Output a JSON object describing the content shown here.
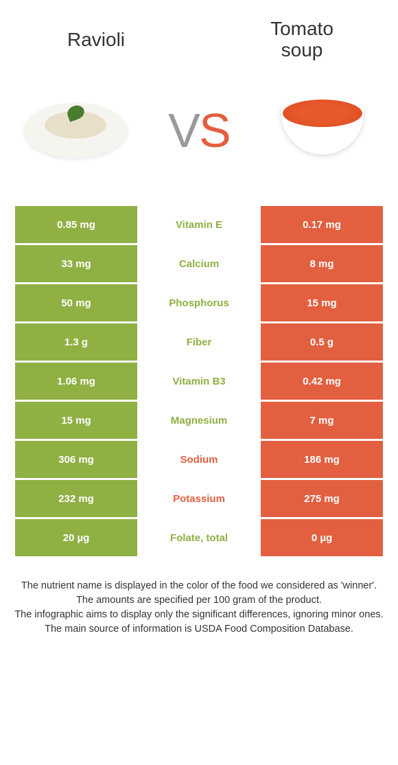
{
  "header": {
    "left_title": "Ravioli",
    "right_title_line1": "Tomato",
    "right_title_line2": "soup",
    "vs_v": "V",
    "vs_s": "S"
  },
  "colors": {
    "green": "#8fb043",
    "orange": "#e25f3f",
    "row_bg_green": "#8fb043",
    "row_bg_orange": "#e25f3f",
    "text_dark": "#333333"
  },
  "table": {
    "rows": [
      {
        "left": "0.85 mg",
        "label": "Vitamin E",
        "right": "0.17 mg",
        "winner": "green"
      },
      {
        "left": "33 mg",
        "label": "Calcium",
        "right": "8 mg",
        "winner": "green"
      },
      {
        "left": "50 mg",
        "label": "Phosphorus",
        "right": "15 mg",
        "winner": "green"
      },
      {
        "left": "1.3 g",
        "label": "Fiber",
        "right": "0.5 g",
        "winner": "green"
      },
      {
        "left": "1.06 mg",
        "label": "Vitamin B3",
        "right": "0.42 mg",
        "winner": "green"
      },
      {
        "left": "15 mg",
        "label": "Magnesium",
        "right": "7 mg",
        "winner": "green"
      },
      {
        "left": "306 mg",
        "label": "Sodium",
        "right": "186 mg",
        "winner": "orange"
      },
      {
        "left": "232 mg",
        "label": "Potassium",
        "right": "275 mg",
        "winner": "orange"
      },
      {
        "left": "20 µg",
        "label": "Folate, total",
        "right": "0 µg",
        "winner": "green"
      }
    ]
  },
  "footer": {
    "line1": "The nutrient name is displayed in the color of the food we considered as 'winner'.",
    "line2": "The amounts are specified per 100 gram of the product.",
    "line3": "The infographic aims to display only the significant differences, ignoring minor ones.",
    "line4": "The main source of information is USDA Food Composition Database."
  }
}
